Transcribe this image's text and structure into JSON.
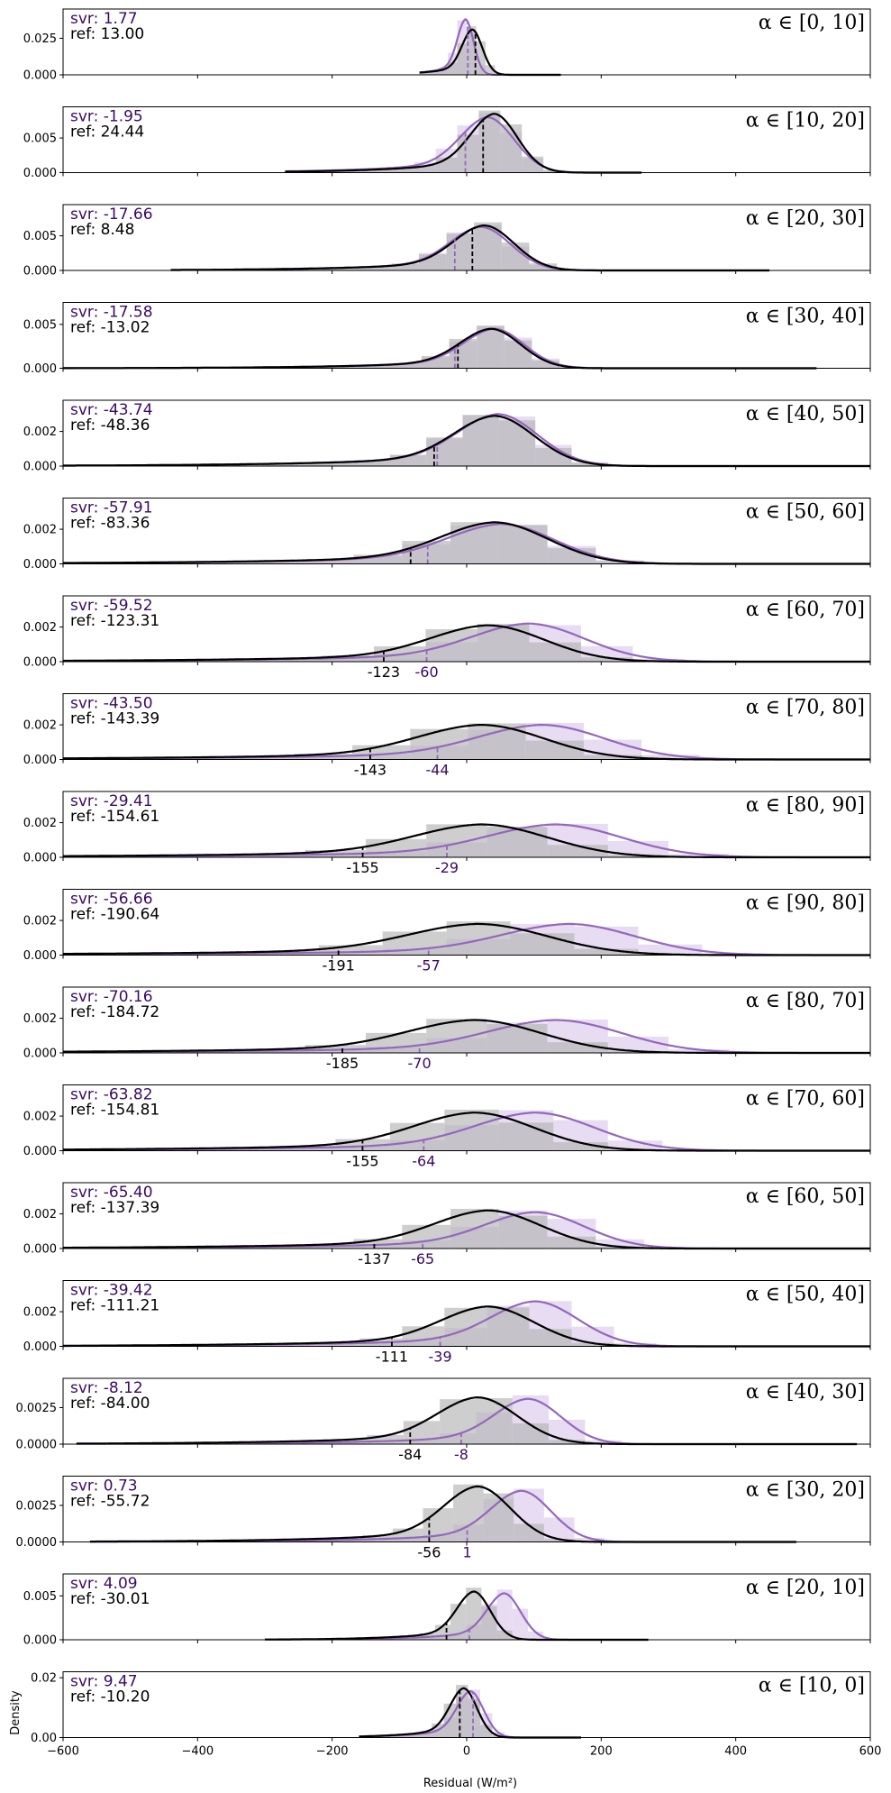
{
  "chart_data": {
    "type": "area",
    "xlabel": "Residual (W/m²)",
    "ylabel": "Density",
    "xlim": [
      -600,
      600
    ],
    "xticks": [
      -600,
      -400,
      -200,
      0,
      200,
      400,
      600
    ],
    "colors": {
      "svr": "#9467bd",
      "ref": "#000000",
      "svr_text": "#3b0a61",
      "svr_hist": "#e3d6ef",
      "ref_hist": "#b3b3b3"
    },
    "panels": [
      {
        "alpha": "α ∈ [0, 10]",
        "svr_text": "svr: 1.77",
        "ref_text": "ref: 13.00",
        "svr_median": 1.77,
        "ref_median": 13.0,
        "svr_label": "",
        "ref_label": "",
        "ymax": 0.045,
        "yticks": [
          0.0,
          0.025
        ],
        "ytick_labels": [
          "0.000",
          "0.025"
        ],
        "svr_mu": -2,
        "svr_sd": 12,
        "svr_peak": 0.038,
        "ref_mu": 8,
        "ref_sd": 15,
        "ref_peak": 0.031,
        "lo": -70,
        "hi": 140
      },
      {
        "alpha": "α ∈ [10, 20]",
        "svr_text": "svr: -1.95",
        "ref_text": "ref: 24.44",
        "svr_median": -1.95,
        "ref_median": 24.44,
        "svr_label": "",
        "ref_label": "",
        "ymax": 0.0095,
        "yticks": [
          0.0,
          0.005
        ],
        "ytick_labels": [
          "0.000",
          "0.005"
        ],
        "svr_mu": 30,
        "svr_sd": 40,
        "svr_peak": 0.008,
        "ref_mu": 40,
        "ref_sd": 35,
        "ref_peak": 0.0085,
        "lo": -270,
        "hi": 260
      },
      {
        "alpha": "α ∈ [20, 30]",
        "svr_text": "svr: -17.66",
        "ref_text": "ref: 8.48",
        "svr_median": -17.66,
        "ref_median": 8.48,
        "svr_label": "",
        "ref_label": "",
        "ymax": 0.0095,
        "yticks": [
          0.0,
          0.005
        ],
        "ytick_labels": [
          "0.000",
          "0.005"
        ],
        "svr_mu": 20,
        "svr_sd": 45,
        "svr_peak": 0.0063,
        "ref_mu": 25,
        "ref_sd": 45,
        "ref_peak": 0.0065,
        "lo": -440,
        "hi": 450
      },
      {
        "alpha": "α ∈ [30, 40]",
        "svr_text": "svr: -17.58",
        "ref_text": "ref: -13.02",
        "svr_median": -17.58,
        "ref_median": -13.02,
        "svr_label": "",
        "ref_label": "",
        "ymax": 0.0075,
        "yticks": [
          0.0,
          0.005
        ],
        "ytick_labels": [
          "0.000",
          "0.005"
        ],
        "svr_mu": 40,
        "svr_sd": 45,
        "svr_peak": 0.0045,
        "ref_mu": 35,
        "ref_sd": 45,
        "ref_peak": 0.0045,
        "lo": -600,
        "hi": 520
      },
      {
        "alpha": "α ∈ [40, 50]",
        "svr_text": "svr: -43.74",
        "ref_text": "ref: -48.36",
        "svr_median": -43.74,
        "ref_median": -48.36,
        "svr_label": "",
        "ref_label": "",
        "ymax": 0.0038,
        "yticks": [
          0.0,
          0.002
        ],
        "ytick_labels": [
          "0.000",
          "0.002"
        ],
        "svr_mu": 45,
        "svr_sd": 60,
        "svr_peak": 0.003,
        "ref_mu": 40,
        "ref_sd": 60,
        "ref_peak": 0.0029,
        "lo": -600,
        "hi": 600
      },
      {
        "alpha": "α ∈ [50, 60]",
        "svr_text": "svr: -57.91",
        "ref_text": "ref: -83.36",
        "svr_median": -57.91,
        "ref_median": -83.36,
        "svr_label": "",
        "ref_label": "",
        "ymax": 0.0038,
        "yticks": [
          0.0,
          0.002
        ],
        "ytick_labels": [
          "0.000",
          "0.002"
        ],
        "svr_mu": 50,
        "svr_sd": 80,
        "svr_peak": 0.0023,
        "ref_mu": 40,
        "ref_sd": 80,
        "ref_peak": 0.0024,
        "lo": -600,
        "hi": 600
      },
      {
        "alpha": "α ∈ [60, 70]",
        "svr_text": "svr: -59.52",
        "ref_text": "ref: -123.31",
        "svr_median": -59.52,
        "ref_median": -123.31,
        "svr_label": "-60",
        "ref_label": "-123",
        "ymax": 0.0038,
        "yticks": [
          0.0,
          0.002
        ],
        "ytick_labels": [
          "0.000",
          "0.002"
        ],
        "svr_mu": 90,
        "svr_sd": 85,
        "svr_peak": 0.0022,
        "ref_mu": 30,
        "ref_sd": 85,
        "ref_peak": 0.0021,
        "lo": -600,
        "hi": 600
      },
      {
        "alpha": "α ∈ [70, 80]",
        "svr_text": "svr: -43.50",
        "ref_text": "ref: -143.39",
        "svr_median": -43.5,
        "ref_median": -143.39,
        "svr_label": "-44",
        "ref_label": "-143",
        "ymax": 0.0038,
        "yticks": [
          0.0,
          0.002
        ],
        "ytick_labels": [
          "0.000",
          "0.002"
        ],
        "svr_mu": 110,
        "svr_sd": 95,
        "svr_peak": 0.002,
        "ref_mu": 20,
        "ref_sd": 95,
        "ref_peak": 0.002,
        "lo": -600,
        "hi": 600
      },
      {
        "alpha": "α ∈ [80, 90]",
        "svr_text": "svr: -29.41",
        "ref_text": "ref: -154.61",
        "svr_median": -29.41,
        "ref_median": -154.61,
        "svr_label": "-29",
        "ref_label": "-155",
        "ymax": 0.0038,
        "yticks": [
          0.0,
          0.002
        ],
        "ytick_labels": [
          "0.000",
          "0.002"
        ],
        "svr_mu": 130,
        "svr_sd": 100,
        "svr_peak": 0.0019,
        "ref_mu": 20,
        "ref_sd": 100,
        "ref_peak": 0.0019,
        "lo": -600,
        "hi": 600
      },
      {
        "alpha": "α ∈ [90, 80]",
        "svr_text": "svr: -56.66",
        "ref_text": "ref: -190.64",
        "svr_median": -56.66,
        "ref_median": -190.64,
        "svr_label": "-57",
        "ref_label": "-191",
        "ymax": 0.0038,
        "yticks": [
          0.0,
          0.002
        ],
        "ytick_labels": [
          "0.000",
          "0.002"
        ],
        "svr_mu": 150,
        "svr_sd": 100,
        "svr_peak": 0.0018,
        "ref_mu": 15,
        "ref_sd": 105,
        "ref_peak": 0.0018,
        "lo": -600,
        "hi": 600
      },
      {
        "alpha": "α ∈ [80, 70]",
        "svr_text": "svr: -70.16",
        "ref_text": "ref: -184.72",
        "svr_median": -70.16,
        "ref_median": -184.72,
        "svr_label": "-70",
        "ref_label": "-185",
        "ymax": 0.0038,
        "yticks": [
          0.0,
          0.002
        ],
        "ytick_labels": [
          "0.000",
          "0.002"
        ],
        "svr_mu": 130,
        "svr_sd": 100,
        "svr_peak": 0.0019,
        "ref_mu": 10,
        "ref_sd": 100,
        "ref_peak": 0.0019,
        "lo": -600,
        "hi": 600
      },
      {
        "alpha": "α ∈ [70, 60]",
        "svr_text": "svr: -63.82",
        "ref_text": "ref: -154.81",
        "svr_median": -63.82,
        "ref_median": -154.81,
        "svr_label": "-64",
        "ref_label": "-155",
        "ymax": 0.0038,
        "yticks": [
          0.0,
          0.002
        ],
        "ytick_labels": [
          "0.000",
          "0.002"
        ],
        "svr_mu": 100,
        "svr_sd": 90,
        "svr_peak": 0.0022,
        "ref_mu": 10,
        "ref_sd": 90,
        "ref_peak": 0.0022,
        "lo": -600,
        "hi": 600
      },
      {
        "alpha": "α ∈ [60, 50]",
        "svr_text": "svr: -65.40",
        "ref_text": "ref: -137.39",
        "svr_median": -65.4,
        "ref_median": -137.39,
        "svr_label": "-65",
        "ref_label": "-137",
        "ymax": 0.0038,
        "yticks": [
          0.0,
          0.002
        ],
        "ytick_labels": [
          "0.000",
          "0.002"
        ],
        "svr_mu": 100,
        "svr_sd": 75,
        "svr_peak": 0.0021,
        "ref_mu": 30,
        "ref_sd": 80,
        "ref_peak": 0.0022,
        "lo": -600,
        "hi": 600
      },
      {
        "alpha": "α ∈ [50, 40]",
        "svr_text": "svr: -39.42",
        "ref_text": "ref: -111.21",
        "svr_median": -39.42,
        "ref_median": -111.21,
        "svr_label": "-39",
        "ref_label": "-111",
        "ymax": 0.0038,
        "yticks": [
          0.0,
          0.002
        ],
        "ytick_labels": [
          "0.000",
          "0.002"
        ],
        "svr_mu": 100,
        "svr_sd": 65,
        "svr_peak": 0.0026,
        "ref_mu": 30,
        "ref_sd": 70,
        "ref_peak": 0.0023,
        "lo": -600,
        "hi": 600
      },
      {
        "alpha": "α ∈ [40, 30]",
        "svr_text": "svr: -8.12",
        "ref_text": "ref: -84.00",
        "svr_median": -8.12,
        "ref_median": -84.0,
        "svr_label": "-8",
        "ref_label": "-84",
        "ymax": 0.0045,
        "yticks": [
          0.0,
          0.0025
        ],
        "ytick_labels": [
          "0.0000",
          "0.0025"
        ],
        "svr_mu": 90,
        "svr_sd": 50,
        "svr_peak": 0.0031,
        "ref_mu": 15,
        "ref_sd": 60,
        "ref_peak": 0.0032,
        "lo": -580,
        "hi": 580
      },
      {
        "alpha": "α ∈ [30, 20]",
        "svr_text": "svr: 0.73",
        "ref_text": "ref: -55.72",
        "svr_median": 0.73,
        "ref_median": -55.72,
        "svr_label": "1",
        "ref_label": "-56",
        "ymax": 0.0045,
        "yticks": [
          0.0,
          0.0025
        ],
        "ytick_labels": [
          "0.0000",
          "0.0025"
        ],
        "svr_mu": 80,
        "svr_sd": 45,
        "svr_peak": 0.0035,
        "ref_mu": 15,
        "ref_sd": 50,
        "ref_peak": 0.0038,
        "lo": -560,
        "hi": 490
      },
      {
        "alpha": "α ∈ [20, 10]",
        "svr_text": "svr: 4.09",
        "ref_text": "ref: -30.01",
        "svr_median": 4.09,
        "ref_median": -30.01,
        "svr_label": "",
        "ref_label": "",
        "ymax": 0.0075,
        "yticks": [
          0.0,
          0.005
        ],
        "ytick_labels": [
          "0.000",
          "0.005"
        ],
        "svr_mu": 55,
        "svr_sd": 25,
        "svr_peak": 0.0053,
        "ref_mu": 10,
        "ref_sd": 25,
        "ref_peak": 0.0055,
        "lo": -300,
        "hi": 270
      },
      {
        "alpha": "α ∈ [10, 0]",
        "svr_text": "svr: 9.47",
        "ref_text": "ref: -10.20",
        "svr_median": 9.47,
        "ref_median": -10.2,
        "svr_label": "",
        "ref_label": "",
        "ymax": 0.022,
        "yticks": [
          0.0,
          0.02
        ],
        "ytick_labels": [
          "0.00",
          "0.02"
        ],
        "svr_mu": 5,
        "svr_sd": 20,
        "svr_peak": 0.0155,
        "ref_mu": -5,
        "ref_sd": 20,
        "ref_peak": 0.0165,
        "lo": -160,
        "hi": 170
      }
    ]
  }
}
